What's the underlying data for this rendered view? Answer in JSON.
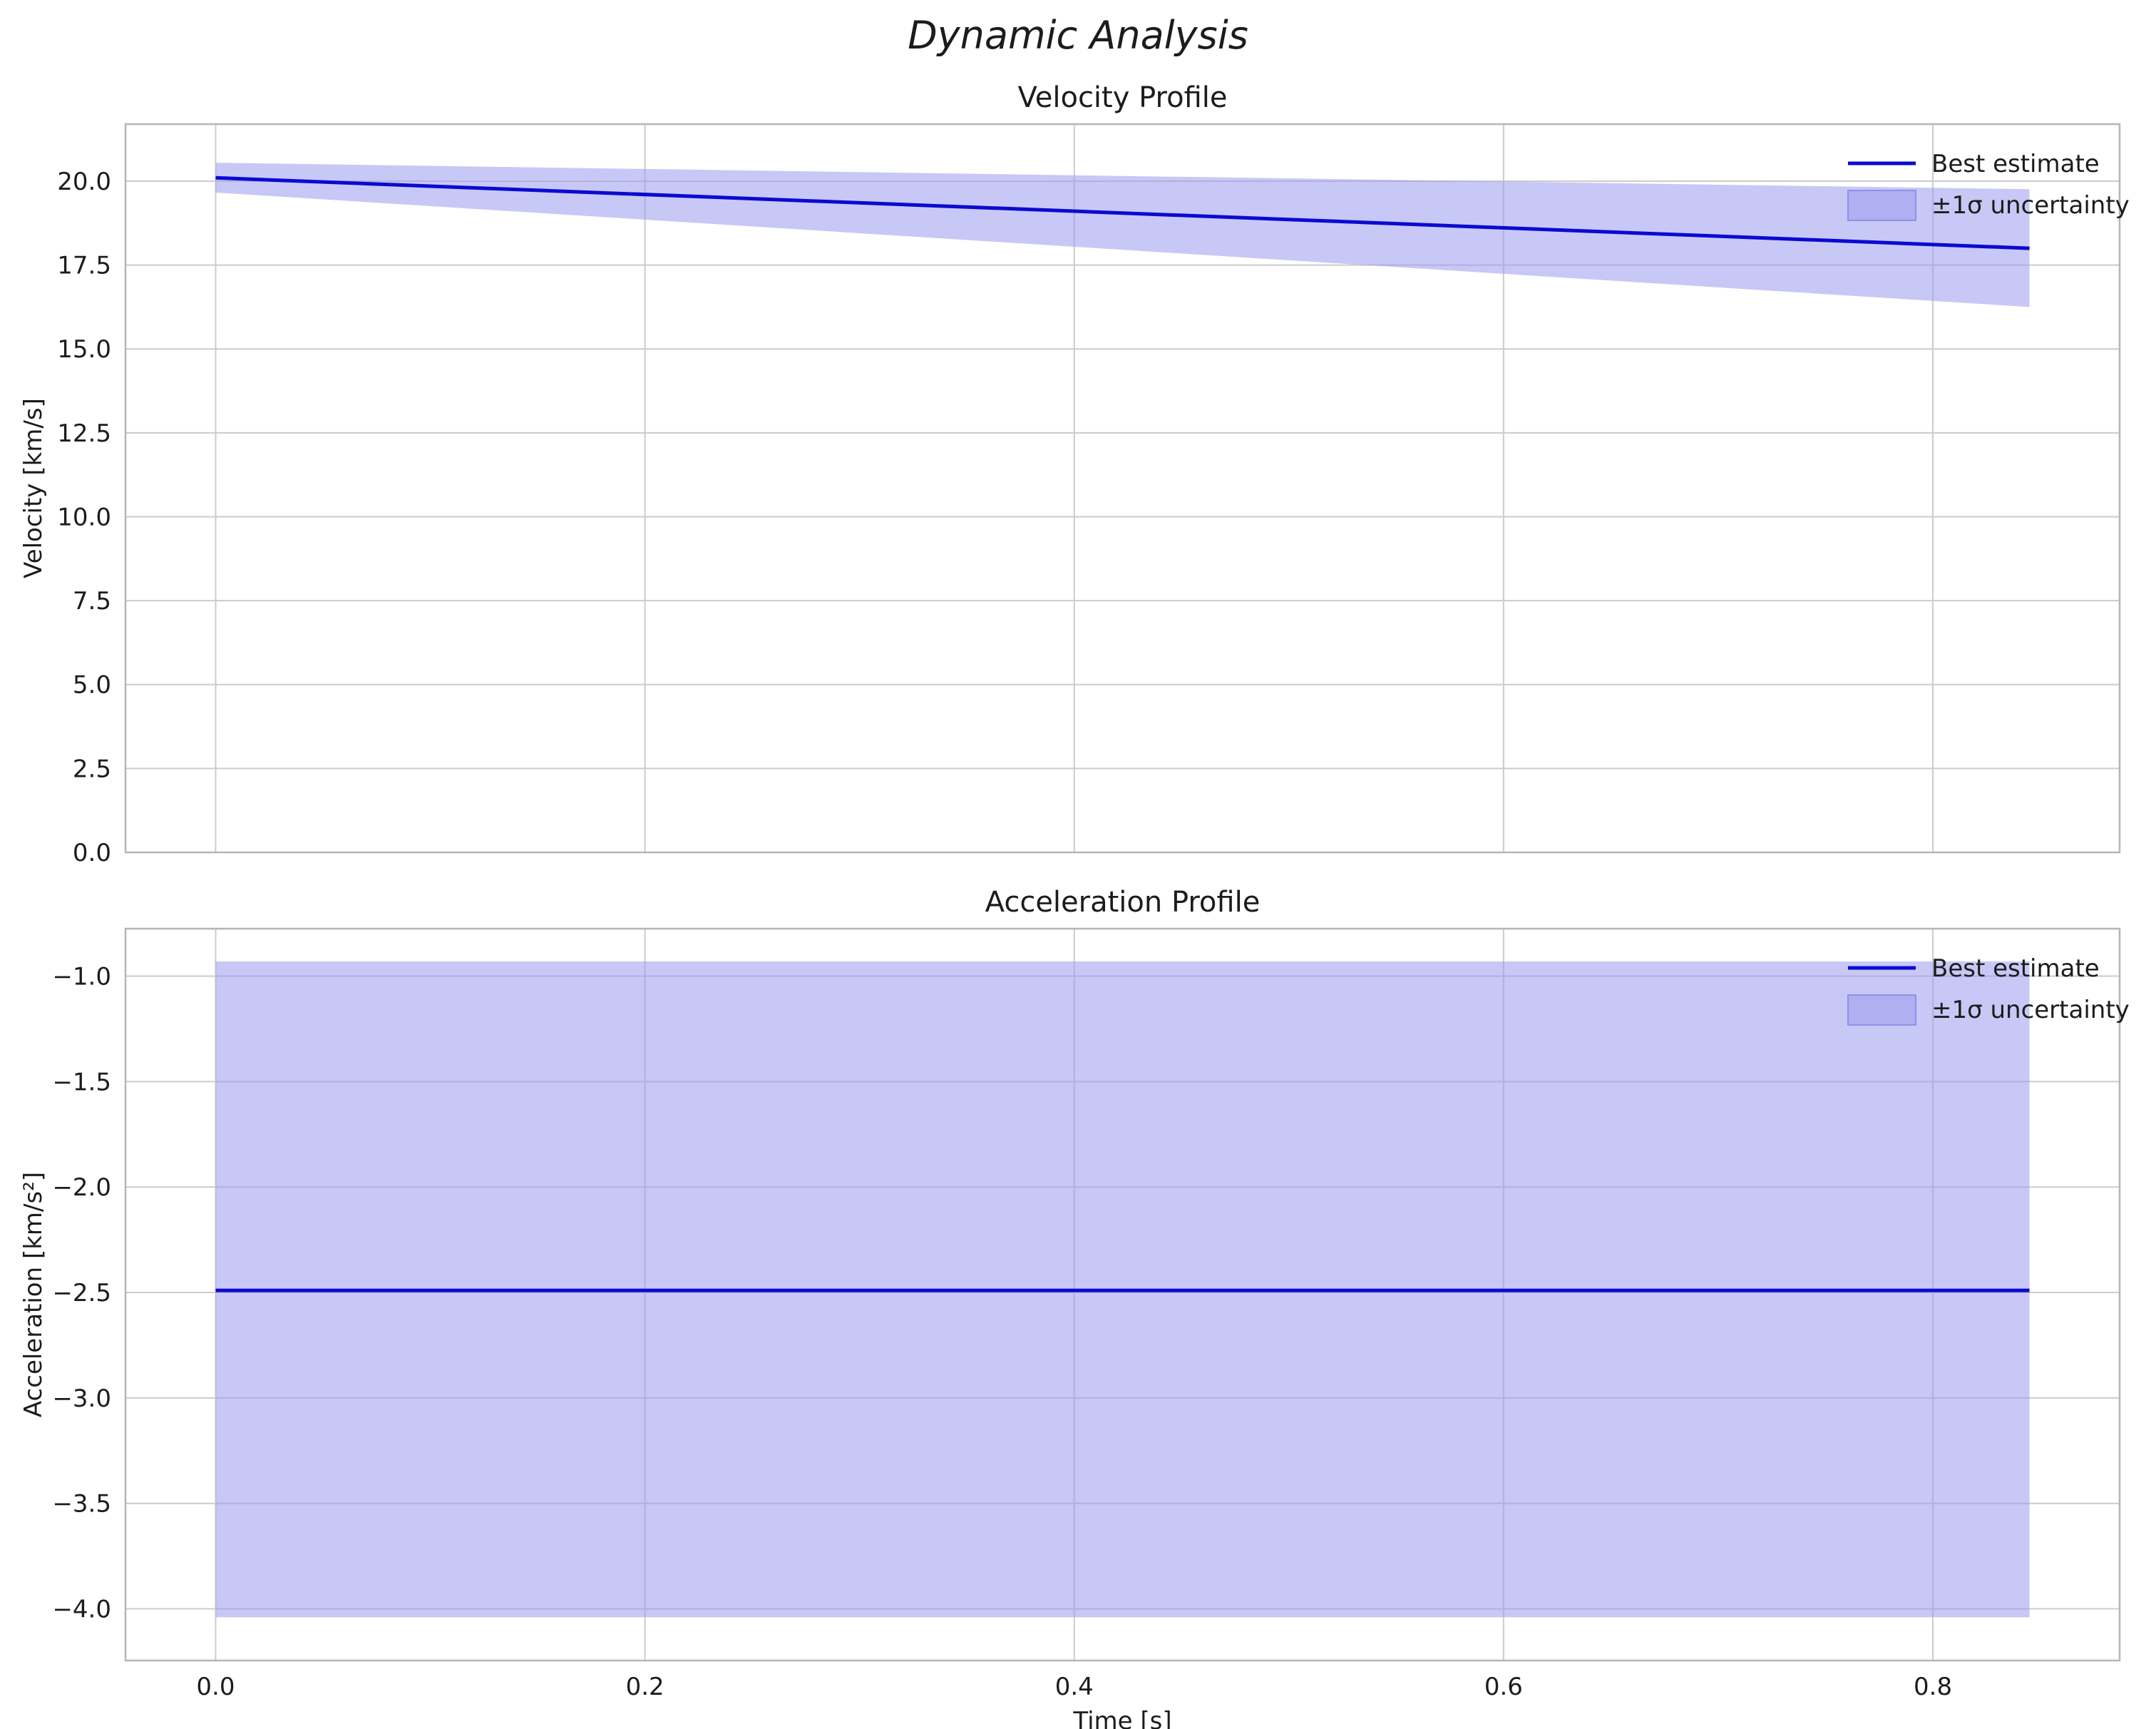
{
  "figure": {
    "title": "Dynamic Analysis"
  },
  "colors": {
    "line": "#0a0ad0",
    "band": "#9b9bef",
    "band_opacity": 0.55,
    "band_edge": "#9090e8",
    "grid": "#cccccc",
    "border": "#b5b5b5",
    "text": "#1c1c1c"
  },
  "chart_data": [
    {
      "type": "line",
      "title": "Velocity Profile",
      "ylabel": "Velocity [km/s]",
      "xlabel": null,
      "xlim": [
        -0.042,
        0.887
      ],
      "ylim": [
        0,
        21.7
      ],
      "xticks": [
        0.0,
        0.2,
        0.4,
        0.6,
        0.8
      ],
      "xticklabels": null,
      "yticks": [
        0.0,
        2.5,
        5.0,
        7.5,
        10.0,
        12.5,
        15.0,
        17.5,
        20.0
      ],
      "yticklabels": [
        "0.0",
        "2.5",
        "5.0",
        "7.5",
        "10.0",
        "12.5",
        "15.0",
        "17.5",
        "20.0"
      ],
      "x": [
        0.0,
        0.845
      ],
      "best_estimate": [
        20.1,
        18.0
      ],
      "band_upper": [
        20.55,
        19.76
      ],
      "band_lower": [
        19.66,
        16.25
      ],
      "legend": [
        "Best estimate",
        "±1σ uncertainty"
      ],
      "legend_position": "upper right",
      "grid": true
    },
    {
      "type": "line",
      "title": "Acceleration Profile",
      "ylabel": "Acceleration [km/s²]",
      "xlabel": "Time [s]",
      "xlim": [
        -0.042,
        0.887
      ],
      "ylim": [
        -4.245,
        -0.775
      ],
      "xticks": [
        0.0,
        0.2,
        0.4,
        0.6,
        0.8
      ],
      "xticklabels": [
        "0.0",
        "0.2",
        "0.4",
        "0.6",
        "0.8"
      ],
      "yticks": [
        -1.0,
        -1.5,
        -2.0,
        -2.5,
        -3.0,
        -3.5,
        -4.0
      ],
      "yticklabels": [
        "−1.0",
        "−1.5",
        "−2.0",
        "−2.5",
        "−3.0",
        "−3.5",
        "−4.0"
      ],
      "x": [
        0.0,
        0.845
      ],
      "best_estimate": [
        -2.49,
        -2.49
      ],
      "band_upper": [
        -0.93,
        -0.93
      ],
      "band_lower": [
        -4.04,
        -4.04
      ],
      "legend": [
        "Best estimate",
        "±1σ uncertainty"
      ],
      "legend_position": "upper right",
      "grid": true
    }
  ]
}
